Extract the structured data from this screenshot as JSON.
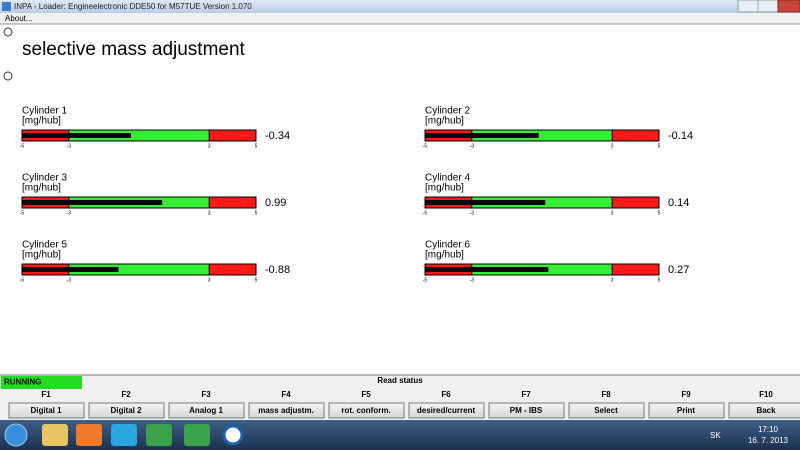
{
  "window": {
    "title": "INPA - Loader:  Engineelectronic DDE50 for M57TUE Version 1.070",
    "menu": [
      "About..."
    ]
  },
  "page": {
    "title": "selective mass adjustment"
  },
  "scale": {
    "min": -5,
    "max": 5,
    "ticks": [
      -5,
      -3,
      3,
      5
    ],
    "zones": [
      {
        "from": -5,
        "to": -3,
        "color": "#ff1a1a"
      },
      {
        "from": -3,
        "to": 3,
        "color": "#33ee33"
      },
      {
        "from": 3,
        "to": 5,
        "color": "#ff1a1a"
      }
    ],
    "fill_color": "#000000"
  },
  "gauges": [
    {
      "label": "Cylinder 1",
      "unit": "[mg/hub]",
      "value": -0.34
    },
    {
      "label": "Cylinder 2",
      "unit": "[mg/hub]",
      "value": -0.14
    },
    {
      "label": "Cylinder 3",
      "unit": "[mg/hub]",
      "value": 0.99
    },
    {
      "label": "Cylinder 4",
      "unit": "[mg/hub]",
      "value": 0.14
    },
    {
      "label": "Cylinder 5",
      "unit": "[mg/hub]",
      "value": -0.88
    },
    {
      "label": "Cylinder 6",
      "unit": "[mg/hub]",
      "value": 0.27
    }
  ],
  "status": {
    "state": "RUNNING",
    "text": "Read status"
  },
  "function_keys": [
    {
      "key": "F1",
      "label": "Digital 1"
    },
    {
      "key": "F2",
      "label": "Digital 2"
    },
    {
      "key": "F3",
      "label": "Analog 1"
    },
    {
      "key": "F4",
      "label": "mass adjustm."
    },
    {
      "key": "F5",
      "label": "rot. conform."
    },
    {
      "key": "F6",
      "label": "desired/current"
    },
    {
      "key": "F7",
      "label": "PM - IBS"
    },
    {
      "key": "F8",
      "label": "Select"
    },
    {
      "key": "F9",
      "label": "Print"
    },
    {
      "key": "F10",
      "label": "Back"
    }
  ],
  "taskbar": {
    "language": "SK",
    "time": "17:10",
    "date": "16. 7. 2013"
  }
}
